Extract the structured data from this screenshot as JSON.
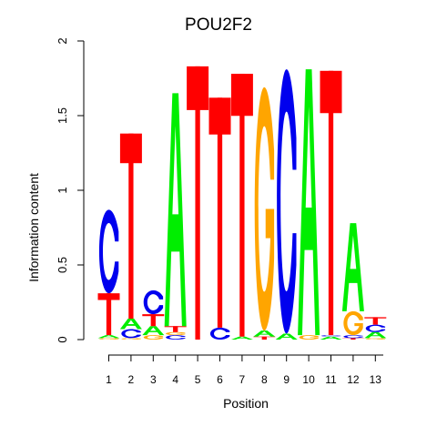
{
  "chart_data": {
    "type": "sequence-logo",
    "title": "POU2F2",
    "xlabel": "Position",
    "ylabel": "Information content",
    "ylim": [
      0,
      2
    ],
    "yticks": [
      "0",
      "0.5",
      "1",
      "1.5",
      "2"
    ],
    "xticks": [
      "1",
      "2",
      "3",
      "4",
      "5",
      "6",
      "7",
      "8",
      "9",
      "10",
      "11",
      "12",
      "13"
    ],
    "colors": {
      "A": "#00ee00",
      "C": "#0000ee",
      "G": "#ffa500",
      "T": "#ff0000"
    },
    "positions": [
      {
        "pos": "1",
        "letters": [
          {
            "base": "G",
            "height": 0.01
          },
          {
            "base": "A",
            "height": 0.02
          },
          {
            "base": "T",
            "height": 0.28
          },
          {
            "base": "C",
            "height": 0.56
          }
        ]
      },
      {
        "pos": "2",
        "letters": [
          {
            "base": "G",
            "height": 0.01
          },
          {
            "base": "C",
            "height": 0.06
          },
          {
            "base": "A",
            "height": 0.07
          },
          {
            "base": "T",
            "height": 1.24
          }
        ]
      },
      {
        "pos": "3",
        "letters": [
          {
            "base": "G",
            "height": 0.03
          },
          {
            "base": "A",
            "height": 0.06
          },
          {
            "base": "T",
            "height": 0.08
          },
          {
            "base": "C",
            "height": 0.16
          }
        ]
      },
      {
        "pos": "4",
        "letters": [
          {
            "base": "C",
            "height": 0.03
          },
          {
            "base": "G",
            "height": 0.02
          },
          {
            "base": "T",
            "height": 0.04
          },
          {
            "base": "A",
            "height": 1.56
          }
        ]
      },
      {
        "pos": "5",
        "letters": [
          {
            "base": "T",
            "height": 1.83
          }
        ]
      },
      {
        "pos": "6",
        "letters": [
          {
            "base": "C",
            "height": 0.08
          },
          {
            "base": "T",
            "height": 1.54
          }
        ]
      },
      {
        "pos": "7",
        "letters": [
          {
            "base": "A",
            "height": 0.02
          },
          {
            "base": "T",
            "height": 1.76
          }
        ]
      },
      {
        "pos": "8",
        "letters": [
          {
            "base": "T",
            "height": 0.02
          },
          {
            "base": "A",
            "height": 0.04
          },
          {
            "base": "G",
            "height": 1.63
          }
        ]
      },
      {
        "pos": "9",
        "letters": [
          {
            "base": "A",
            "height": 0.04
          },
          {
            "base": "C",
            "height": 1.77
          }
        ]
      },
      {
        "pos": "10",
        "letters": [
          {
            "base": "G",
            "height": 0.03
          },
          {
            "base": "A",
            "height": 1.78
          }
        ]
      },
      {
        "pos": "11",
        "letters": [
          {
            "base": "A",
            "height": 0.02
          },
          {
            "base": "C",
            "height": 0.01
          },
          {
            "base": "T",
            "height": 1.77
          }
        ]
      },
      {
        "pos": "12",
        "letters": [
          {
            "base": "T",
            "height": 0.01
          },
          {
            "base": "C",
            "height": 0.02
          },
          {
            "base": "G",
            "height": 0.16
          },
          {
            "base": "A",
            "height": 0.59
          }
        ]
      },
      {
        "pos": "13",
        "letters": [
          {
            "base": "G",
            "height": 0.01
          },
          {
            "base": "A",
            "height": 0.04
          },
          {
            "base": "C",
            "height": 0.05
          },
          {
            "base": "T",
            "height": 0.05
          }
        ]
      }
    ]
  }
}
